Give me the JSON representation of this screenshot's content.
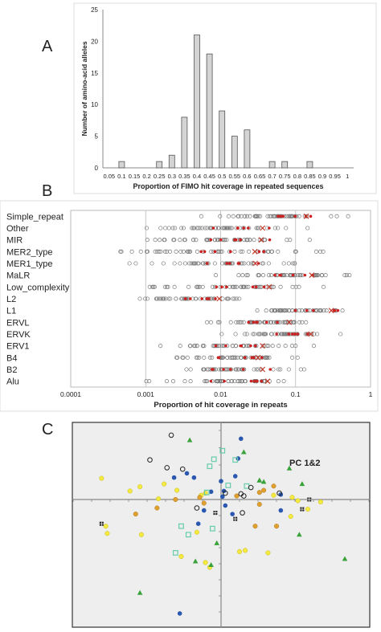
{
  "panel_labels": {
    "a": "A",
    "b": "B",
    "c": "C"
  },
  "chart_data": [
    {
      "type": "bar",
      "panel": "A",
      "ylabel": "Number of amino-acid alleles",
      "xlabel": "Proportion of FIMO hit coverage in repeated sequences",
      "ylim": [
        0,
        25
      ],
      "yticks": [
        "0",
        "5",
        "10",
        "15",
        "20",
        "25"
      ],
      "categories": [
        "0.05",
        "0.1",
        "0.15",
        "0.2",
        "0.25",
        "0.3",
        "0.35",
        "0.4",
        "0.45",
        "0.5",
        "0.55",
        "0.6",
        "0.65",
        "0.7",
        "0.75",
        "0.8",
        "0.85",
        "0.9",
        "0.95",
        "1"
      ],
      "values": [
        0,
        1,
        0,
        0,
        1,
        2,
        8,
        21,
        18,
        9,
        5,
        6,
        0,
        1,
        1,
        0,
        1,
        0,
        0,
        0
      ],
      "bar_color": "#d4d4d4",
      "grid": false
    },
    {
      "type": "scatter",
      "panel": "B",
      "xscale": "log",
      "xlim": [
        0.0001,
        1
      ],
      "xlabel": "Proportion of hit coverage in repeats",
      "xticks": [
        "0.0001",
        "0.001",
        "0.01",
        "0.1",
        "1"
      ],
      "categories": [
        "Simple_repeat",
        "Other",
        "MIR",
        "MER2_type",
        "MER1_type",
        "MaLR",
        "Low_complexity",
        "L2",
        "L1",
        "ERVL",
        "ERVK",
        "ERV1",
        "B4",
        "B2",
        "Alu"
      ],
      "category_ranges": [
        [
          0.004,
          0.7
        ],
        [
          0.0009,
          0.2
        ],
        [
          0.0008,
          0.2
        ],
        [
          0.00025,
          0.3
        ],
        [
          0.0005,
          0.2
        ],
        [
          0.008,
          0.6
        ],
        [
          0.0008,
          0.3
        ],
        [
          0.0006,
          0.03
        ],
        [
          0.02,
          0.9
        ],
        [
          0.004,
          0.3
        ],
        [
          0.01,
          0.5
        ],
        [
          0.0009,
          0.2
        ],
        [
          0.001,
          0.15
        ],
        [
          0.0009,
          0.2
        ],
        [
          0.0007,
          0.3
        ]
      ],
      "red_markers": [
        "#cc2222"
      ],
      "colors": {
        "open": "#777777",
        "mean_x": "#c0392b",
        "red_dot": "#cc2222"
      }
    },
    {
      "type": "scatter",
      "panel": "C",
      "title": "PC 1&2",
      "xlim": [
        -1,
        1
      ],
      "ylim": [
        -1,
        1
      ],
      "colors": {
        "yellow": "#f4ea3f",
        "orange": "#e0a030",
        "blue": "#2a58b0",
        "green": "#3aa23a",
        "teal": "#66ccaa",
        "black": "#222222",
        "bg": "#eeeeee"
      },
      "series": [
        {
          "marker": "yellow-circle",
          "points": [
            [
              -0.84,
              0.3
            ],
            [
              -0.64,
              0.12
            ],
            [
              -0.57,
              0.18
            ],
            [
              -0.44,
              0.01
            ],
            [
              -0.4,
              0.22
            ],
            [
              -0.31,
              0.13
            ],
            [
              -0.14,
              0.06
            ],
            [
              -0.11,
              0.09
            ],
            [
              -0.81,
              -0.22
            ],
            [
              -0.8,
              -0.28
            ],
            [
              -0.56,
              -0.29
            ],
            [
              -0.17,
              -0.27
            ],
            [
              -0.28,
              -0.47
            ],
            [
              -0.11,
              -0.52
            ],
            [
              -0.08,
              -0.56
            ],
            [
              0.13,
              -0.43
            ],
            [
              0.17,
              -0.42
            ],
            [
              0.33,
              -0.44
            ],
            [
              0.49,
              -0.14
            ],
            [
              0.37,
              0.06
            ],
            [
              0.5,
              0.03
            ],
            [
              0.54,
              -0.01
            ],
            [
              0.61,
              -0.08
            ],
            [
              0.7,
              -0.02
            ]
          ]
        },
        {
          "marker": "orange-circle",
          "points": [
            [
              -0.32,
              0.0
            ],
            [
              -0.15,
              0.03
            ],
            [
              -0.12,
              -0.03
            ],
            [
              0.11,
              0.05
            ],
            [
              0.27,
              0.1
            ],
            [
              0.3,
              0.13
            ],
            [
              0.37,
              0.19
            ],
            [
              0.27,
              -0.04
            ],
            [
              0.24,
              -0.22
            ],
            [
              0.39,
              -0.22
            ],
            [
              -0.45,
              -0.07
            ],
            [
              -0.6,
              -0.12
            ]
          ]
        },
        {
          "marker": "blue-circle",
          "points": [
            [
              0.14,
              0.86
            ],
            [
              0.12,
              0.58
            ],
            [
              0.1,
              0.33
            ],
            [
              0.0,
              0.26
            ],
            [
              -0.19,
              0.31
            ],
            [
              -0.24,
              0.37
            ],
            [
              -0.33,
              0.31
            ],
            [
              -0.07,
              0.11
            ],
            [
              0.02,
              0.12
            ],
            [
              0.01,
              0.04
            ],
            [
              -0.12,
              -0.09
            ],
            [
              -0.16,
              -0.2
            ],
            [
              0.03,
              -0.05
            ],
            [
              0.08,
              -0.12
            ],
            [
              0.42,
              -0.09
            ],
            [
              0.42,
              0.07
            ],
            [
              -0.29,
              -0.94
            ]
          ]
        },
        {
          "marker": "green-triangle",
          "points": [
            [
              0.27,
              0.27
            ],
            [
              0.3,
              0.25
            ],
            [
              0.57,
              0.22
            ],
            [
              -0.22,
              0.84
            ],
            [
              0.16,
              0.67
            ],
            [
              0.48,
              0.44
            ],
            [
              0.27,
              0.27
            ],
            [
              -0.03,
              -0.36
            ],
            [
              -0.18,
              -0.51
            ],
            [
              0.55,
              -0.29
            ],
            [
              0.87,
              -0.49
            ],
            [
              -0.07,
              -0.54
            ],
            [
              -0.57,
              -0.77
            ]
          ]
        },
        {
          "marker": "teal-square",
          "points": [
            [
              0.01,
              0.69
            ],
            [
              -0.05,
              0.57
            ],
            [
              0.1,
              0.56
            ],
            [
              -0.08,
              0.47
            ],
            [
              -0.1,
              0.1
            ],
            [
              0.05,
              0.2
            ],
            [
              0.18,
              0.19
            ],
            [
              -0.06,
              -0.24
            ],
            [
              -0.28,
              -0.22
            ],
            [
              -0.32,
              -0.44
            ],
            [
              -0.23,
              -0.29
            ]
          ]
        },
        {
          "marker": "black-open-circle",
          "points": [
            [
              -0.35,
              0.91
            ],
            [
              -0.5,
              0.56
            ],
            [
              -0.38,
              0.45
            ],
            [
              -0.27,
              0.43
            ],
            [
              0.41,
              0.09
            ],
            [
              0.03,
              0.09
            ],
            [
              0.14,
              0.08
            ],
            [
              0.15,
              -0.11
            ],
            [
              -0.17,
              -0.07
            ],
            [
              0.21,
              0.17
            ],
            [
              0.16,
              0.05
            ]
          ]
        },
        {
          "marker": "black-square",
          "points": [
            [
              -0.84,
              -0.2
            ],
            [
              -0.04,
              -0.11
            ],
            [
              0.1,
              -0.16
            ],
            [
              0.57,
              -0.08
            ],
            [
              0.62,
              0.0
            ]
          ]
        }
      ]
    }
  ]
}
